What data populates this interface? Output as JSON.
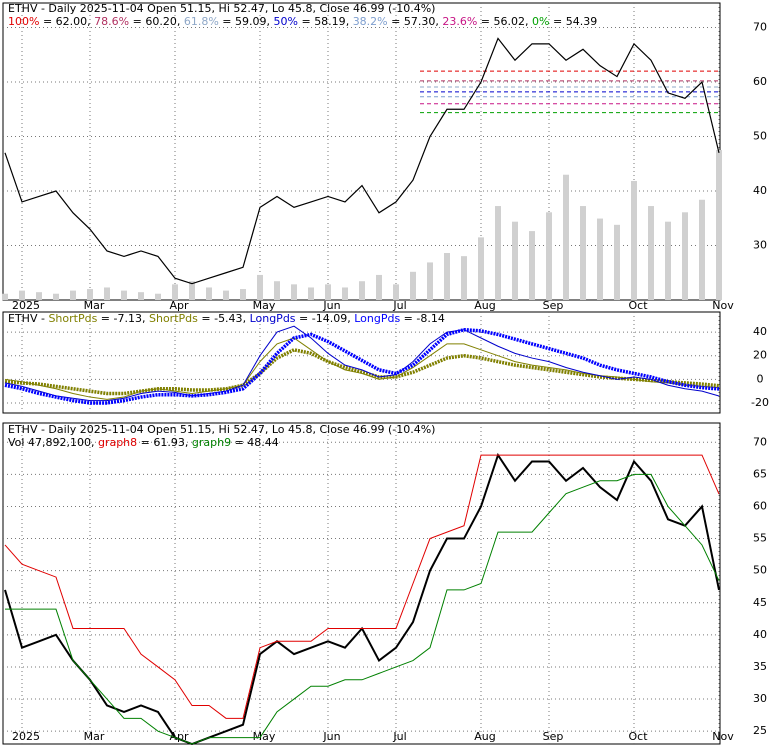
{
  "chart_data": [
    {
      "type": "line",
      "title": "ETHV - Daily 2025-11-04 Open 51.15, Hi 52.47, Lo 45.8, Close 46.99 (-10.4%)",
      "categories": [
        null,
        "2025",
        null,
        null,
        null,
        "Mar",
        null,
        null,
        null,
        null,
        "Apr",
        null,
        null,
        null,
        null,
        "May",
        null,
        null,
        null,
        "Jun",
        null,
        null,
        null,
        "Jul",
        null,
        null,
        null,
        null,
        "Aug",
        null,
        null,
        null,
        "Sep",
        null,
        null,
        null,
        null,
        "Oct",
        null,
        null,
        null,
        null,
        "Nov"
      ],
      "series": [
        {
          "name": "ETHV",
          "color": "#000000",
          "values": [
            47,
            38,
            39,
            40,
            36,
            33,
            29,
            28,
            29,
            28,
            24,
            23,
            24,
            25,
            26,
            37,
            39,
            37,
            38,
            39,
            38,
            41,
            36,
            38,
            42,
            50,
            55,
            55,
            60,
            68,
            64,
            67,
            67,
            64,
            66,
            63,
            61,
            67,
            64,
            58,
            57,
            60,
            46.99
          ]
        }
      ],
      "volume": [
        2000000,
        3000000,
        2500000,
        2000000,
        3000000,
        3500000,
        4000000,
        3000000,
        2500000,
        2000000,
        5000000,
        6000000,
        4000000,
        3000000,
        3500000,
        8000000,
        6000000,
        5000000,
        4000000,
        5000000,
        4000000,
        6000000,
        8000000,
        5000000,
        9000000,
        12000000,
        15000000,
        14000000,
        20000000,
        30000000,
        25000000,
        22000000,
        28000000,
        40000000,
        30000000,
        26000000,
        24000000,
        38000000,
        30000000,
        25000000,
        28000000,
        32000000,
        47892100
      ],
      "volume_color": "#d0d0d0",
      "fib_levels": [
        {
          "name": "100%",
          "value": 62.0,
          "value_label": "62.00",
          "color": "#e00000"
        },
        {
          "name": "78.6%",
          "value": 60.2,
          "value_label": "60.20",
          "color": "#b03060"
        },
        {
          "name": "61.8%",
          "value": 59.09,
          "value_label": "59.09",
          "color": "#8fa8c8"
        },
        {
          "name": "50%",
          "value": 58.19,
          "value_label": "58.19",
          "color": "#0000cc"
        },
        {
          "name": "38.2%",
          "value": 57.3,
          "value_label": "57.30",
          "color": "#7f9fcf"
        },
        {
          "name": "23.6%",
          "value": 56.02,
          "value_label": "56.02",
          "color": "#c71585"
        },
        {
          "name": "0%",
          "value": 54.39,
          "value_label": "54.39",
          "color": "#00a000"
        }
      ],
      "ylim": [
        20,
        74.5
      ],
      "yticks": [
        30,
        40,
        50,
        60,
        70
      ],
      "grid": true
    },
    {
      "type": "line",
      "title": "ETHV -",
      "categories": [
        null,
        "2025",
        null,
        null,
        null,
        "Mar",
        null,
        null,
        null,
        null,
        "Apr",
        null,
        null,
        null,
        null,
        "May",
        null,
        null,
        null,
        "Jun",
        null,
        null,
        null,
        "Jul",
        null,
        null,
        null,
        null,
        "Aug",
        null,
        null,
        null,
        "Sep",
        null,
        null,
        null,
        null,
        "Oct",
        null,
        null,
        null,
        null,
        "Nov"
      ],
      "series": [
        {
          "name": "ShortPds",
          "color": "#808000",
          "width": 1,
          "values": [
            0,
            -2,
            -5,
            -8,
            -12,
            -15,
            -17,
            -15,
            -10,
            -8,
            -10,
            -12,
            -10,
            -8,
            -5,
            15,
            30,
            35,
            25,
            15,
            8,
            5,
            0,
            2,
            10,
            20,
            30,
            30,
            25,
            20,
            15,
            12,
            10,
            8,
            5,
            3,
            2,
            0,
            -2,
            -3,
            -5,
            -6,
            -7.13
          ]
        },
        {
          "name": "ShortPds",
          "color": "#808000",
          "width": 3.5,
          "values": [
            -2,
            -3,
            -4,
            -6,
            -8,
            -10,
            -12,
            -12,
            -10,
            -8,
            -8,
            -9,
            -9,
            -8,
            -5,
            5,
            18,
            25,
            22,
            15,
            10,
            6,
            2,
            2,
            6,
            12,
            18,
            20,
            18,
            15,
            12,
            10,
            8,
            6,
            4,
            2,
            1,
            0,
            -1,
            -2,
            -3,
            -4,
            -5.43
          ]
        },
        {
          "name": "LongPds",
          "color": "#0000cc",
          "width": 1,
          "values": [
            -3,
            -6,
            -10,
            -14,
            -16,
            -18,
            -18,
            -16,
            -12,
            -10,
            -11,
            -14,
            -12,
            -10,
            -5,
            20,
            40,
            45,
            35,
            22,
            12,
            8,
            2,
            4,
            15,
            30,
            40,
            42,
            35,
            28,
            22,
            18,
            15,
            10,
            6,
            3,
            0,
            2,
            0,
            -5,
            -8,
            -10,
            -14.09
          ]
        },
        {
          "name": "LongPds",
          "color": "#0000ff",
          "width": 3.5,
          "values": [
            -5,
            -8,
            -12,
            -15,
            -18,
            -20,
            -20,
            -18,
            -15,
            -13,
            -13,
            -14,
            -13,
            -11,
            -8,
            5,
            22,
            35,
            38,
            32,
            24,
            16,
            8,
            5,
            12,
            25,
            38,
            42,
            41,
            38,
            34,
            30,
            26,
            22,
            18,
            12,
            8,
            5,
            2,
            -2,
            -5,
            -7,
            -8.14
          ]
        }
      ],
      "ylim": [
        -28.5,
        57
      ],
      "yticks": [
        -20,
        0,
        20,
        40
      ],
      "grid": true
    },
    {
      "type": "line",
      "title": "ETHV - Daily 2025-11-04 Open 51.15, Hi 52.47, Lo 45.8, Close 46.99 (-10.4%)",
      "volume_name": "Vol",
      "volume_label": "47,892,100",
      "categories": [
        null,
        "2025",
        null,
        null,
        null,
        "Mar",
        null,
        null,
        null,
        null,
        "Apr",
        null,
        null,
        null,
        null,
        "May",
        null,
        null,
        null,
        "Jun",
        null,
        null,
        null,
        "Jul",
        null,
        null,
        null,
        null,
        "Aug",
        null,
        null,
        null,
        "Sep",
        null,
        null,
        null,
        null,
        "Oct",
        null,
        null,
        null,
        null,
        "Nov"
      ],
      "series": [
        {
          "name": "ETHV",
          "color": "#000000",
          "width": 2,
          "values": [
            47,
            38,
            39,
            40,
            36,
            33,
            29,
            28,
            29,
            28,
            24,
            23,
            24,
            25,
            26,
            37,
            39,
            37,
            38,
            39,
            38,
            41,
            36,
            38,
            42,
            50,
            55,
            55,
            60,
            68,
            64,
            67,
            67,
            64,
            66,
            63,
            61,
            67,
            64,
            58,
            57,
            60,
            46.99
          ]
        },
        {
          "name": "graph8",
          "color": "#e00000",
          "width": 1,
          "values": [
            54,
            51,
            50,
            49,
            41,
            41,
            41,
            41,
            37,
            35,
            33,
            29,
            29,
            27,
            27,
            38,
            39,
            39,
            39,
            41,
            41,
            41,
            41,
            41,
            48,
            55,
            56,
            57,
            68,
            68,
            68,
            68,
            68,
            68,
            68,
            68,
            68,
            68,
            68,
            68,
            68,
            68,
            61.93
          ]
        },
        {
          "name": "graph9",
          "color": "#008000",
          "width": 1,
          "values": [
            44,
            44,
            44,
            44,
            36,
            33,
            30,
            27,
            27,
            25,
            24,
            23,
            24,
            24,
            24,
            24,
            28,
            30,
            32,
            32,
            33,
            33,
            34,
            35,
            36,
            38,
            47,
            47,
            48,
            56,
            56,
            56,
            59,
            62,
            63,
            64,
            64,
            65,
            65,
            60,
            57,
            54,
            48.44
          ]
        }
      ],
      "ylim": [
        23,
        73
      ],
      "yticks": [
        25,
        30,
        35,
        40,
        45,
        50,
        55,
        60,
        65,
        70
      ],
      "grid": true
    }
  ]
}
